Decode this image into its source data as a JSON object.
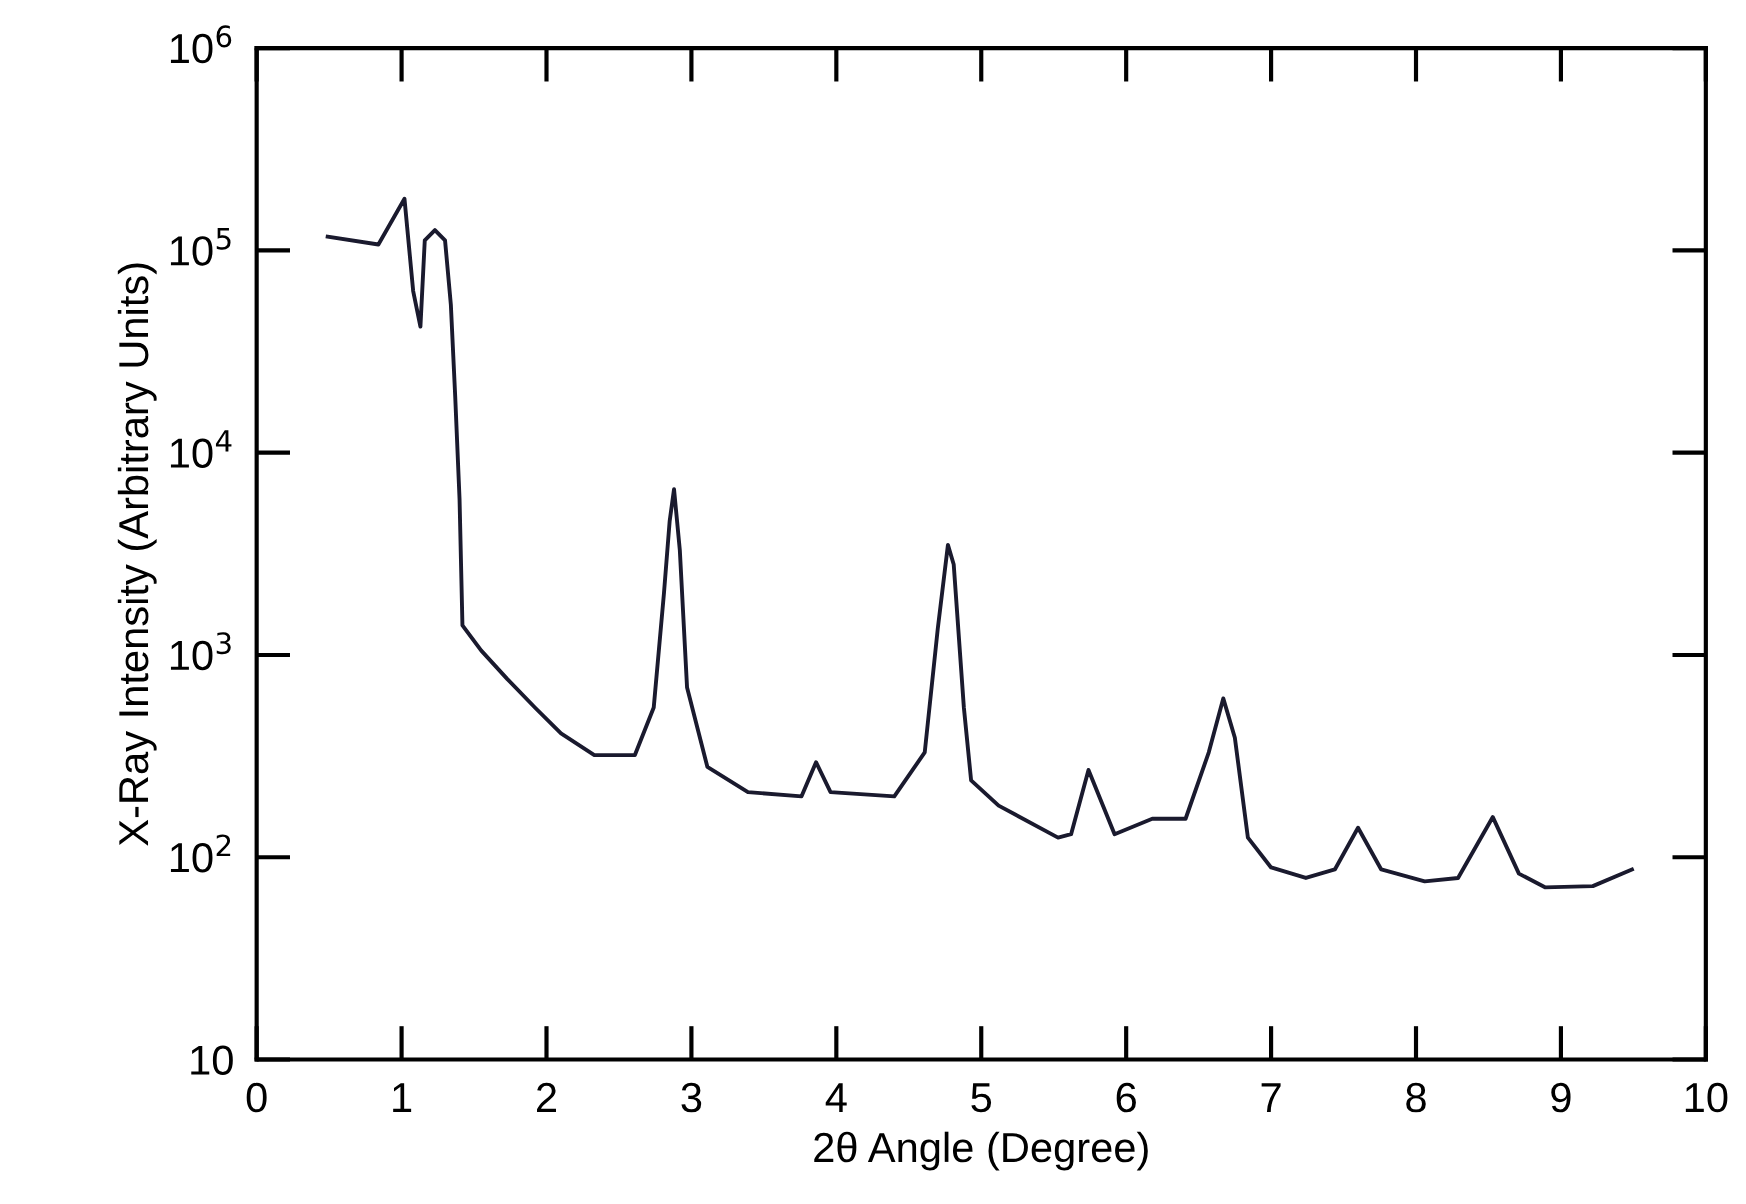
{
  "chart_data": {
    "type": "line",
    "xlabel": "2θ Angle (Degree)",
    "ylabel": "X-Ray Intensity (Arbitrary Units)",
    "log": "y",
    "grid": false,
    "legend": false,
    "marker": "none",
    "line_style": "solid",
    "xlim": [
      0,
      10
    ],
    "xticks": [
      0,
      1,
      2,
      3,
      4,
      5,
      6,
      7,
      8,
      9,
      10
    ],
    "ylim": [
      10,
      1000000
    ],
    "yticks": [
      10,
      {
        "value": 100,
        "label": "10$^{2}$"
      },
      {
        "value": 1000,
        "label": "10$^{3}$"
      },
      {
        "value": 10000,
        "label": "10$^{4}$"
      },
      {
        "value": 100000,
        "label": "10$^{5}$"
      },
      {
        "value": 1000000,
        "label": "10$^{6}$"
      }
    ],
    "series": [
      {
        "color": "#1a1a2e",
        "x": [
          0.49,
          0.84,
          1.02,
          1.08,
          1.13,
          1.16,
          1.23,
          1.3,
          1.34,
          1.37,
          1.4,
          1.42,
          1.55,
          1.73,
          1.92,
          2.1,
          2.33,
          2.61,
          2.74,
          2.81,
          2.85,
          2.88,
          2.92,
          2.97,
          3.11,
          3.39,
          3.76,
          3.86,
          3.96,
          4.4,
          4.61,
          4.7,
          4.77,
          4.81,
          4.88,
          4.93,
          5.12,
          5.53,
          5.62,
          5.74,
          5.92,
          6.18,
          6.41,
          6.57,
          6.67,
          6.75,
          6.84,
          7.0,
          7.24,
          7.44,
          7.6,
          7.76,
          8.06,
          8.29,
          8.53,
          8.71,
          8.89,
          9.22,
          9.49
        ],
        "values": [
          117000,
          107000,
          180000,
          63000,
          42000,
          112000,
          126000,
          112000,
          54000,
          19000,
          5900,
          1400,
          1050,
          760,
          550,
          410,
          320,
          320,
          550,
          2000,
          4600,
          6600,
          3300,
          690,
          280,
          210,
          200,
          295,
          210,
          200,
          330,
          1350,
          3500,
          2800,
          550,
          240,
          180,
          125,
          130,
          270,
          130,
          155,
          155,
          330,
          610,
          390,
          125,
          89,
          79,
          87,
          140,
          87,
          76,
          79,
          158,
          83,
          71,
          72,
          87
        ]
      }
    ]
  }
}
